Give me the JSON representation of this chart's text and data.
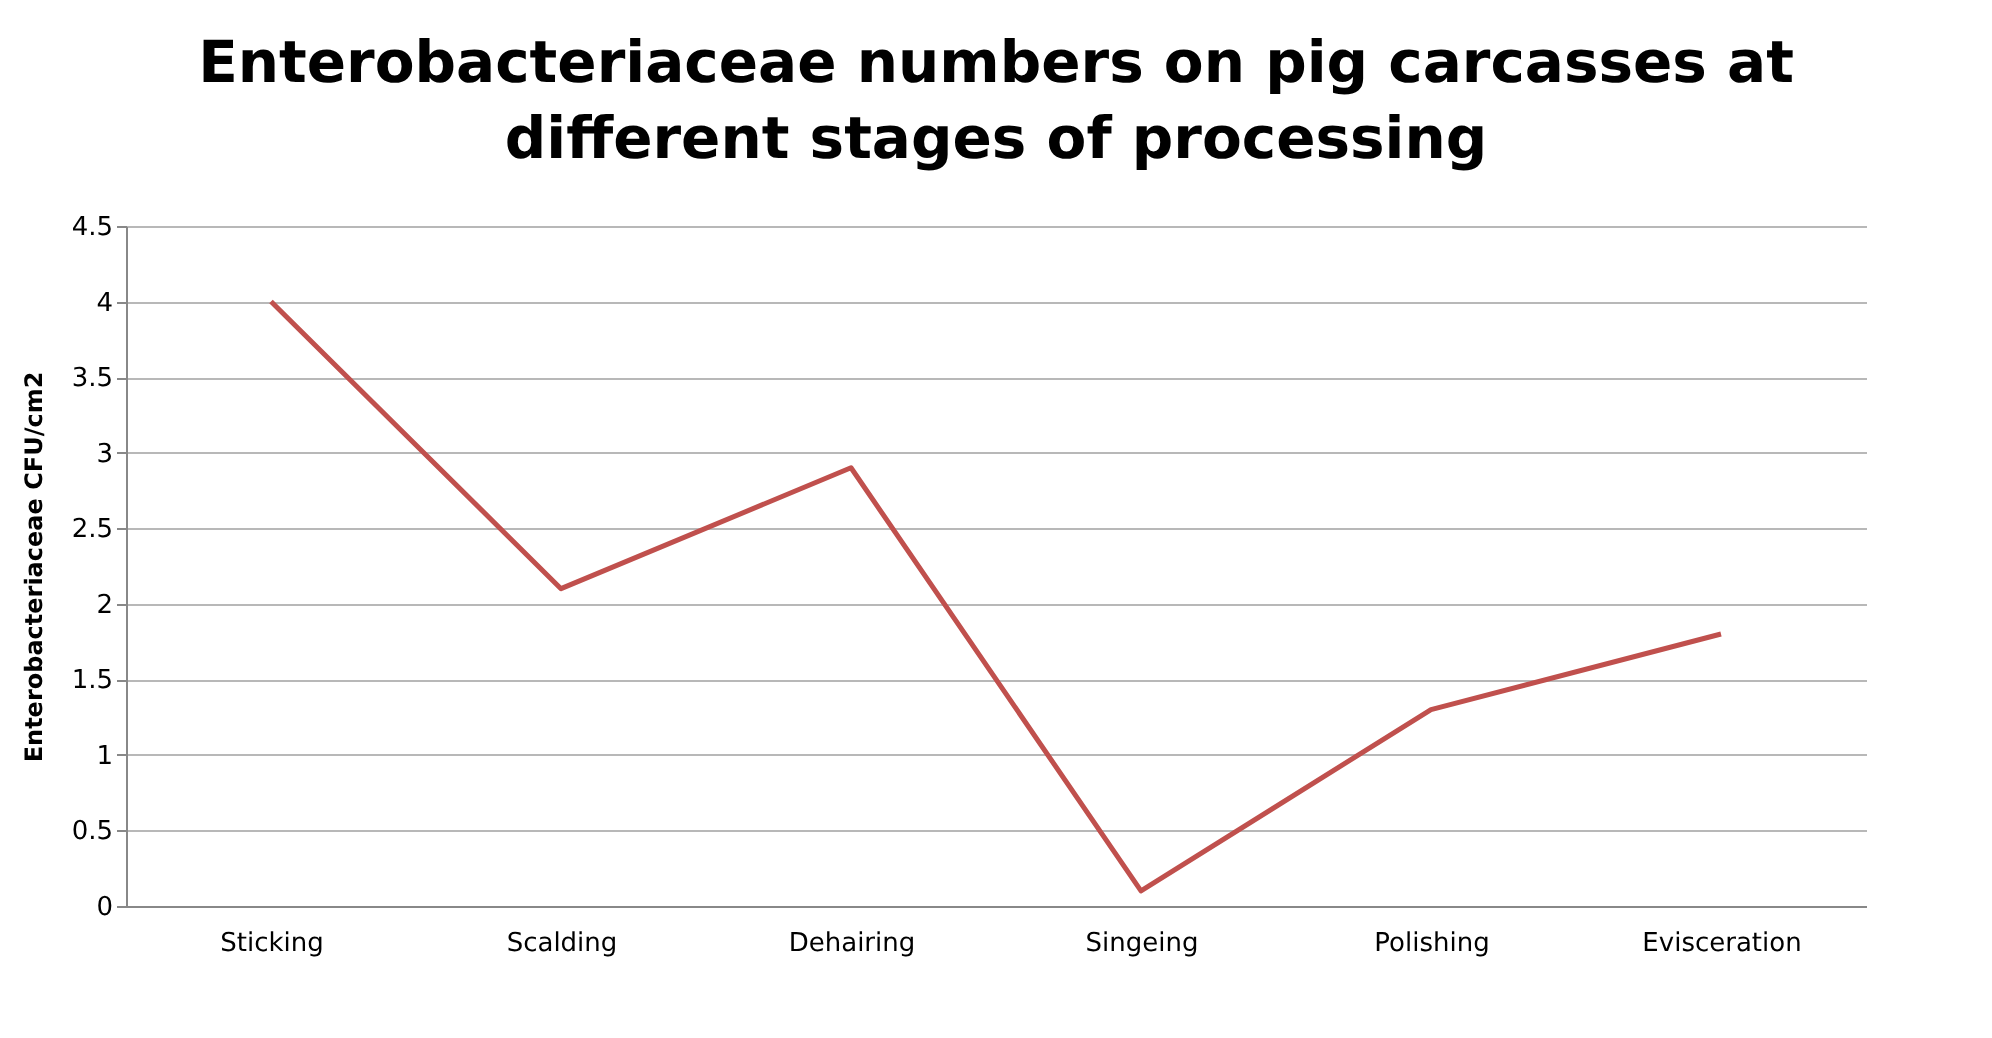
{
  "chart_data": {
    "type": "line",
    "title": "Enterobacteriaceae numbers on pig carcasses at different stages of processing",
    "ylabel": "Enterobacteriaceae CFU/cm2",
    "categories": [
      "Sticking",
      "Scalding",
      "Dehairing",
      "Singeing",
      "Polishing",
      "Evisceration"
    ],
    "series": [
      {
        "color": "#c0504d",
        "values": [
          4,
          2.1,
          2.9,
          0.1,
          1.3,
          1.8
        ]
      }
    ],
    "ylim": [
      0,
      4.5
    ],
    "yticks": [
      0,
      0.5,
      1,
      1.5,
      2,
      2.5,
      3,
      3.5,
      4,
      4.5
    ],
    "grid": "y",
    "marker": "none",
    "line_style": "solid"
  }
}
